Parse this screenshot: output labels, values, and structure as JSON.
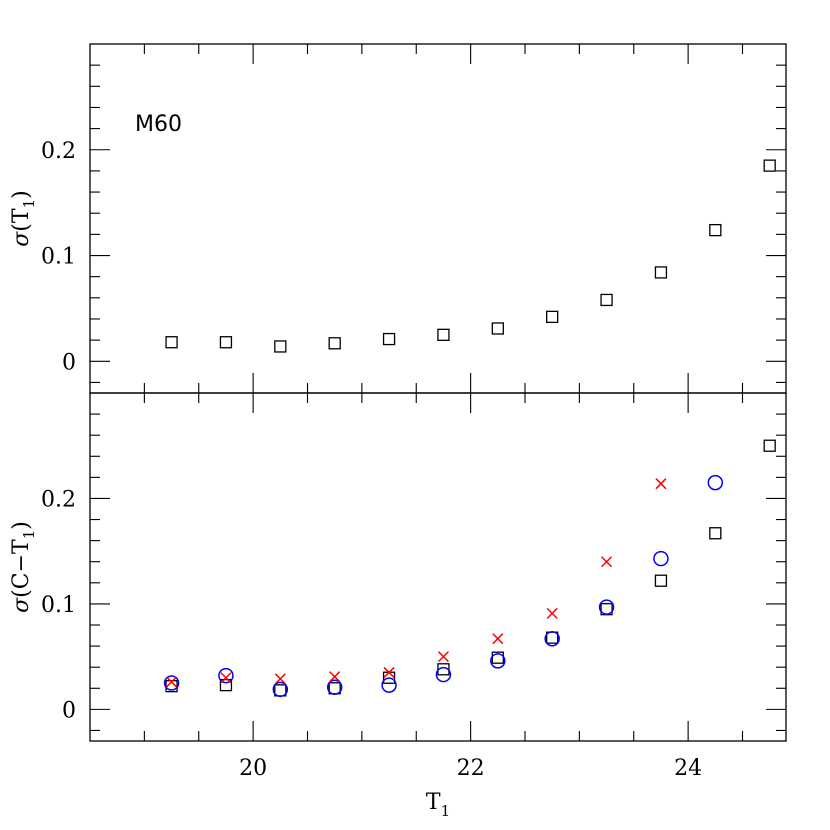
{
  "chart_data": [
    {
      "type": "scatter",
      "panel": "top",
      "annotation": "M60",
      "xlabel": "",
      "ylabel": "σ(T",
      "ylabel_sub": "1",
      "ylabel_suffix": ")",
      "xlim": [
        18.5,
        24.9
      ],
      "ylim": [
        -0.03,
        0.3
      ],
      "yticks": [
        0,
        0.1,
        0.2
      ],
      "ytick_labels": [
        "0",
        "0.1",
        "0.2"
      ],
      "series": [
        {
          "marker": "square",
          "color": "#000000",
          "x": [
            19.25,
            19.75,
            20.25,
            20.75,
            21.25,
            21.75,
            22.25,
            22.75,
            23.25,
            23.75,
            24.25,
            24.75
          ],
          "y": [
            0.018,
            0.018,
            0.014,
            0.017,
            0.021,
            0.025,
            0.031,
            0.042,
            0.058,
            0.084,
            0.124,
            0.185
          ]
        }
      ]
    },
    {
      "type": "scatter",
      "panel": "bottom",
      "xlabel": "T",
      "xlabel_sub": "1",
      "ylabel": "σ(C−T",
      "ylabel_sub": "1",
      "ylabel_suffix": ")",
      "xlim": [
        18.5,
        24.9
      ],
      "ylim": [
        -0.03,
        0.3
      ],
      "xticks": [
        20,
        22,
        24
      ],
      "xtick_labels": [
        "20",
        "22",
        "24"
      ],
      "yticks": [
        0,
        0.1,
        0.2
      ],
      "ytick_labels": [
        "0",
        "0.1",
        "0.2"
      ],
      "series": [
        {
          "marker": "square",
          "color": "#000000",
          "x": [
            19.25,
            19.75,
            20.25,
            20.75,
            21.25,
            21.75,
            22.25,
            22.75,
            23.25,
            23.75,
            24.25,
            24.75
          ],
          "y": [
            0.022,
            0.023,
            0.018,
            0.02,
            0.03,
            0.038,
            0.049,
            0.068,
            0.095,
            0.122,
            0.167,
            0.25
          ]
        },
        {
          "marker": "circle",
          "color": "#0000ff",
          "x": [
            19.25,
            19.75,
            20.25,
            20.75,
            21.25,
            21.75,
            22.25,
            22.75,
            23.25,
            23.75,
            24.25
          ],
          "y": [
            0.025,
            0.032,
            0.019,
            0.021,
            0.023,
            0.033,
            0.046,
            0.067,
            0.097,
            0.143,
            0.215
          ]
        },
        {
          "marker": "cross",
          "color": "#ff0000",
          "x": [
            19.25,
            19.75,
            20.25,
            20.75,
            21.25,
            21.75,
            22.25,
            22.75,
            23.25,
            23.75
          ],
          "y": [
            0.026,
            0.03,
            0.029,
            0.031,
            0.035,
            0.05,
            0.067,
            0.091,
            0.14,
            0.214
          ]
        }
      ]
    }
  ]
}
